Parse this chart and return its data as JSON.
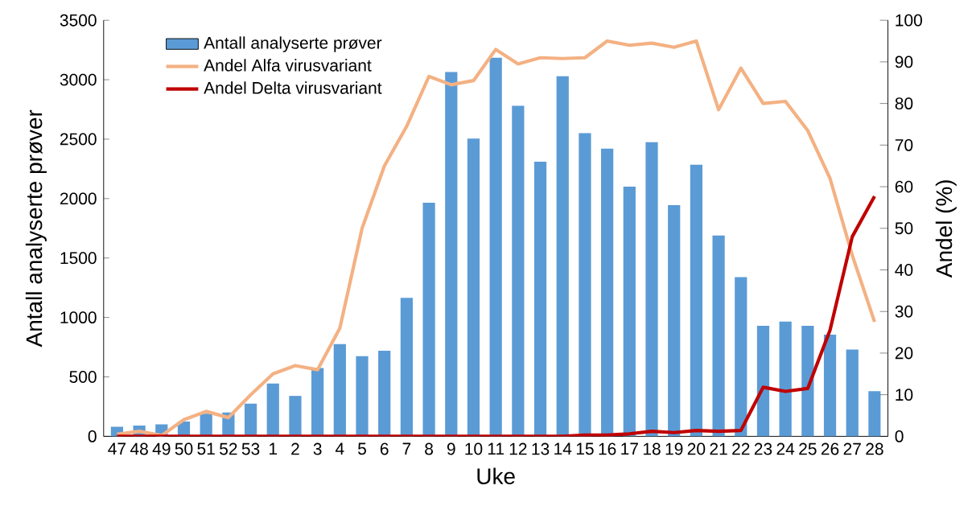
{
  "chart_data": {
    "type": "bar",
    "xlabel": "Uke",
    "ylabel": "Antall analyserte prøver",
    "y2label": "Andel (%)",
    "categories": [
      "47",
      "48",
      "49",
      "50",
      "51",
      "52",
      "53",
      "1",
      "2",
      "3",
      "4",
      "5",
      "6",
      "7",
      "8",
      "9",
      "10",
      "11",
      "12",
      "13",
      "14",
      "15",
      "16",
      "17",
      "18",
      "19",
      "20",
      "21",
      "22",
      "23",
      "24",
      "25",
      "26",
      "27",
      "28"
    ],
    "ylim": [
      0,
      3500
    ],
    "yticks": [
      0,
      500,
      1000,
      1500,
      2000,
      2500,
      3000,
      3500
    ],
    "y2lim": [
      0,
      100
    ],
    "y2ticks": [
      0,
      10,
      20,
      30,
      40,
      50,
      60,
      70,
      80,
      90,
      100
    ],
    "legend": "top left",
    "series": [
      {
        "name": "Antall analyserte prøver",
        "color": "#5b9bd5",
        "values": [
          80,
          90,
          100,
          125,
          190,
          200,
          275,
          445,
          340,
          575,
          775,
          675,
          720,
          1165,
          1965,
          3065,
          2505,
          3185,
          2780,
          2310,
          3030,
          2550,
          2420,
          2100,
          2475,
          1945,
          2285,
          1690,
          1340,
          930,
          965,
          930,
          855,
          730,
          380
        ]
      },
      {
        "name": "Andel Alfa virusvariant",
        "type": "line",
        "axis": "y2",
        "color": "#f4b183",
        "values": [
          0.5,
          1.2,
          0.2,
          4,
          6,
          4.5,
          10,
          15,
          17,
          16,
          26,
          50,
          65,
          74.5,
          86.5,
          84.5,
          85.5,
          93,
          89.5,
          91,
          90.8,
          91,
          95,
          94,
          94.5,
          93.5,
          95,
          78.5,
          88.5,
          80,
          80.5,
          73.5,
          62,
          43.5,
          27.5
        ]
      },
      {
        "name": "Andel Delta virusvariant",
        "type": "line",
        "axis": "y2",
        "color": "#c00000",
        "values": [
          0,
          0,
          0,
          0,
          0,
          0,
          0,
          0,
          0,
          0,
          0,
          0,
          0,
          0,
          0,
          0,
          0,
          0,
          0,
          0,
          0,
          0.3,
          0.3,
          0.6,
          1.2,
          0.9,
          1.4,
          1.2,
          1.4,
          11.8,
          10.8,
          11.5,
          25.5,
          48,
          57.7
        ]
      }
    ]
  }
}
